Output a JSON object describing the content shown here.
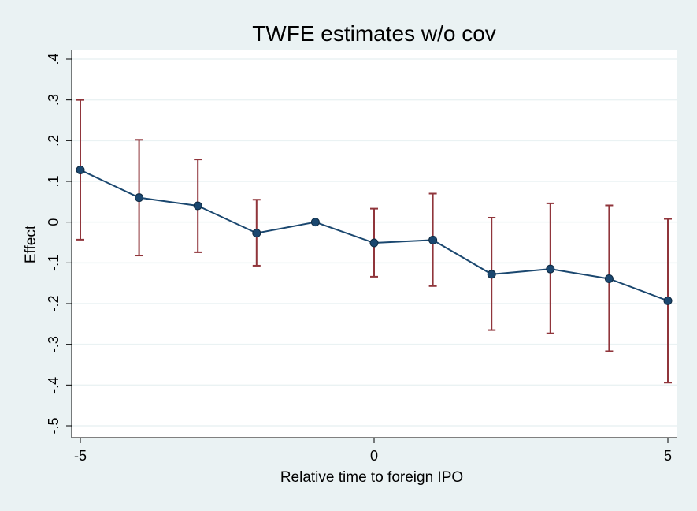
{
  "chart_data": {
    "type": "line",
    "title": "TWFE estimates w/o cov",
    "xlabel": "Relative time to foreign IPO",
    "ylabel": "Effect",
    "xlim": [
      -5,
      5
    ],
    "ylim": [
      -0.5,
      0.4
    ],
    "x_ticks": [
      -5,
      0,
      5
    ],
    "x_tick_labels": [
      "-5",
      "0",
      "5"
    ],
    "y_ticks": [
      -0.5,
      -0.4,
      -0.3,
      -0.2,
      -0.1,
      0,
      0.1,
      0.2,
      0.3,
      0.4
    ],
    "y_tick_labels": [
      "-.5",
      "-.4",
      "-.3",
      "-.2",
      "-.1",
      "0",
      ".1",
      ".2",
      ".3",
      ".4"
    ],
    "grid": true,
    "series": [
      {
        "x": [
          -5,
          -4,
          -3,
          -2,
          -1,
          0,
          1,
          2,
          3,
          4,
          5
        ],
        "values": [
          0.128,
          0.06,
          0.04,
          -0.027,
          0.0,
          -0.051,
          -0.044,
          -0.128,
          -0.115,
          -0.139,
          -0.193
        ],
        "ci_lower": [
          -0.043,
          -0.082,
          -0.074,
          -0.107,
          null,
          -0.134,
          -0.157,
          -0.265,
          -0.273,
          -0.317,
          -0.394
        ],
        "ci_upper": [
          0.3,
          0.202,
          0.154,
          0.055,
          null,
          0.033,
          0.07,
          0.011,
          0.046,
          0.041,
          0.008
        ]
      }
    ],
    "colors": {
      "background": "#eaf2f3",
      "plot_area": "#ffffff",
      "line": "#1a476f",
      "marker": "#1a476f",
      "error_bar": "#90353b",
      "grid": "#eaf2f3"
    }
  }
}
